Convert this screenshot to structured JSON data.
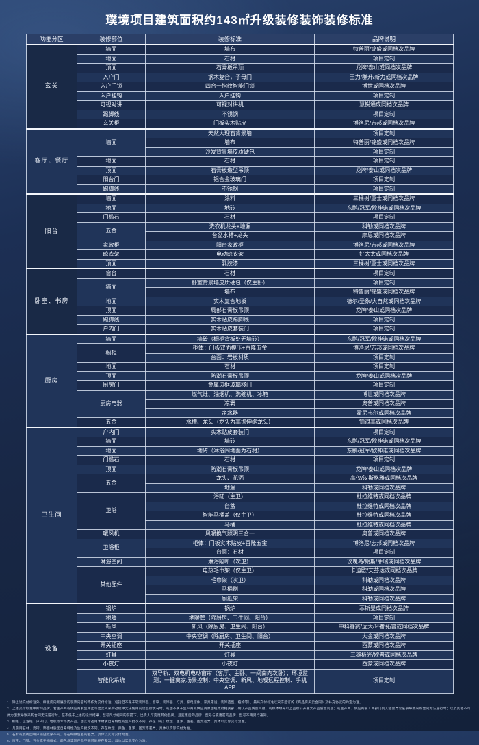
{
  "title": "璞境项目建筑面积约143㎡升级装修装饰装修标准",
  "table": {
    "headers": [
      "功能分区",
      "装修部位",
      "装修标准",
      "品牌说明"
    ],
    "sections": [
      {
        "zone": "玄关",
        "groups": [
          {
            "part": "墙面",
            "entries": [
              {
                "standard": "墙布",
                "brand": "特普丽/锦盛或同档次品牌"
              }
            ]
          },
          {
            "part": "地面",
            "entries": [
              {
                "standard": "石材",
                "brand": "项目定制"
              }
            ]
          },
          {
            "part": "顶面",
            "entries": [
              {
                "standard": "石膏板吊顶",
                "brand": "龙牌/泰山或同档次品牌"
              }
            ]
          },
          {
            "part": "入户门",
            "entries": [
              {
                "standard": "钢木复合，子母门",
                "brand": "王力/群升/新力或同档次品牌"
              }
            ]
          },
          {
            "part": "入户门锁",
            "entries": [
              {
                "standard": "四合一指纹智能门锁",
                "brand": "博世或同档次品牌"
              }
            ]
          },
          {
            "part": "入户挂钩",
            "entries": [
              {
                "standard": "入户挂钩",
                "brand": "项目定制"
              }
            ]
          },
          {
            "part": "可视对讲",
            "entries": [
              {
                "standard": "可视对讲机",
                "brand": "慧锐通或同档次品牌"
              }
            ]
          },
          {
            "part": "踢脚线",
            "entries": [
              {
                "standard": "不锈钢",
                "brand": "项目定制"
              }
            ]
          },
          {
            "part": "玄关柜",
            "entries": [
              {
                "standard": "门板实木贴皮",
                "brand": "博洛尼/志邦或同档次品牌"
              }
            ]
          }
        ]
      },
      {
        "zone": "客厅、餐厅",
        "groups": [
          {
            "part": "墙面",
            "entries": [
              {
                "standard": "天然大理石背景墙",
                "brand": "项目定制"
              },
              {
                "standard": "墙布",
                "brand": "特普丽/锦盛或同档次品牌"
              },
              {
                "standard": "沙发背景墙皮质硬包",
                "brand": "项目定制"
              }
            ]
          },
          {
            "part": "地面",
            "entries": [
              {
                "standard": "石材",
                "brand": "项目定制"
              }
            ]
          },
          {
            "part": "顶面",
            "entries": [
              {
                "standard": "石膏板造型吊顶",
                "brand": "龙牌/泰山或同档次品牌"
              }
            ]
          },
          {
            "part": "阳台门",
            "entries": [
              {
                "standard": "铝合金玻璃门",
                "brand": "项目定制"
              }
            ]
          },
          {
            "part": "踢脚线",
            "entries": [
              {
                "standard": "不锈钢",
                "brand": "项目定制"
              }
            ]
          }
        ]
      },
      {
        "zone": "阳台",
        "groups": [
          {
            "part": "墙面",
            "entries": [
              {
                "standard": "涂料",
                "brand": "三棵树/亚士或同档次品牌"
              }
            ]
          },
          {
            "part": "地面",
            "entries": [
              {
                "standard": "地砖",
                "brand": "东鹏/冠军/欧神诺或同档次品牌"
              }
            ]
          },
          {
            "part": "门槛石",
            "entries": [
              {
                "standard": "石材",
                "brand": "项目定制"
              }
            ]
          },
          {
            "part": "五金",
            "entries": [
              {
                "standard": "洗衣机龙头+地漏",
                "brand": "科勒或同档次品牌"
              },
              {
                "standard": "台盆水槽+龙头",
                "brand": "摩恩或同档次品牌"
              }
            ]
          },
          {
            "part": "家政柜",
            "entries": [
              {
                "standard": "阳台家政柜",
                "brand": "博洛尼/志邦或同档次品牌"
              }
            ]
          },
          {
            "part": "晾衣架",
            "entries": [
              {
                "standard": "电动晾衣架",
                "brand": "好太太或同档次品牌"
              }
            ]
          },
          {
            "part": "顶面",
            "entries": [
              {
                "standard": "乳胶漆",
                "brand": "三棵树/亚士或同档次品牌"
              }
            ]
          }
        ]
      },
      {
        "zone": "卧室、书房",
        "groups": [
          {
            "part": "窗台",
            "entries": [
              {
                "standard": "石材",
                "brand": "项目定制"
              }
            ]
          },
          {
            "part": "墙面",
            "entries": [
              {
                "standard": "卧室背景墙皮质硬包（仅主卧）",
                "brand": "项目定制"
              },
              {
                "standard": "墙布",
                "brand": "特普丽/锦盛或同档次品牌"
              }
            ]
          },
          {
            "part": "地面",
            "entries": [
              {
                "standard": "实木复合地板",
                "brand": "德尔/圣象/大自然或同档次品牌"
              }
            ]
          },
          {
            "part": "顶面",
            "entries": [
              {
                "standard": "局部石膏板吊顶",
                "brand": "龙牌/泰山或同档次品牌"
              }
            ]
          },
          {
            "part": "踢脚线",
            "entries": [
              {
                "standard": "实木贴皮踢脚线",
                "brand": "项目定制"
              }
            ]
          },
          {
            "part": "户内门",
            "entries": [
              {
                "standard": "实木贴皮套装门",
                "brand": "项目定制"
              }
            ]
          }
        ]
      },
      {
        "zone": "厨房",
        "groups": [
          {
            "part": "墙面",
            "entries": [
              {
                "standard": "墙砖（橱柜背板处无墙砖）",
                "brand": "东鹏/冠军/欧神诺或同档次品牌"
              }
            ]
          },
          {
            "part": "橱柜",
            "entries": [
              {
                "standard": "柜体：门板双面模压+百隆五金",
                "brand": "博洛尼/志邦或同档次品牌"
              },
              {
                "standard": "台面：岩板材质",
                "brand": "项目定制"
              }
            ]
          },
          {
            "part": "地面",
            "entries": [
              {
                "standard": "石材",
                "brand": "项目定制"
              }
            ]
          },
          {
            "part": "顶面",
            "entries": [
              {
                "standard": "防潮石膏板吊顶",
                "brand": "龙牌/泰山或同档次品牌"
              }
            ]
          },
          {
            "part": "厨房门",
            "entries": [
              {
                "standard": "金属边框玻璃移门",
                "brand": "项目定制"
              }
            ]
          },
          {
            "part": "厨房电器",
            "entries": [
              {
                "standard": "燃气灶、油烟机、洗碗机、冰箱",
                "brand": "博世或同档次品牌"
              },
              {
                "standard": "凉霸",
                "brand": "奥普或同档次品牌"
              },
              {
                "standard": "净水器",
                "brand": "霍尼韦尔或同档次品牌"
              }
            ]
          },
          {
            "part": "五金",
            "entries": [
              {
                "standard": "水槽、龙头（龙头为高抛伸缩龙头）",
                "brand": "铂浪高或同档次品牌"
              }
            ]
          }
        ]
      },
      {
        "zone": "卫生间",
        "groups": [
          {
            "part": "户内门",
            "entries": [
              {
                "standard": "实木贴皮套装门",
                "brand": "项目定制"
              }
            ]
          },
          {
            "part": "墙面",
            "entries": [
              {
                "standard": "墙砖",
                "brand": "东鹏/冠军/欧神诺或同档次品牌"
              }
            ]
          },
          {
            "part": "地面",
            "entries": [
              {
                "standard": "地砖（淋浴间地面为石材）",
                "brand": "东鹏/冠军/欧神诺或同档次品牌"
              }
            ]
          },
          {
            "part": "门槛石",
            "entries": [
              {
                "standard": "石材",
                "brand": "项目定制"
              }
            ]
          },
          {
            "part": "顶面",
            "entries": [
              {
                "standard": "防潮石膏板吊顶",
                "brand": "龙牌/泰山或同档次品牌"
              }
            ]
          },
          {
            "part": "五金",
            "entries": [
              {
                "standard": "龙头、花洒",
                "brand": "高仪/汉斯格雅或同档次品牌"
              },
              {
                "standard": "地漏",
                "brand": "科勒或同档次品牌"
              }
            ]
          },
          {
            "part": "卫浴",
            "entries": [
              {
                "standard": "浴缸（主卫）",
                "brand": "杜拉维特或同档次品牌"
              },
              {
                "standard": "台盆",
                "brand": "杜拉维特或同档次品牌"
              },
              {
                "standard": "智能马桶盖（仅主卫）",
                "brand": "杜拉维特或同档次品牌"
              },
              {
                "standard": "马桶",
                "brand": "杜拉维特或同档次品牌"
              }
            ]
          },
          {
            "part": "暖风机",
            "entries": [
              {
                "standard": "风暖换气照明三合一",
                "brand": "奥普或同档次品牌"
              }
            ]
          },
          {
            "part": "卫浴柜",
            "entries": [
              {
                "standard": "柜体：门板实木贴皮+百隆五金",
                "brand": "博洛尼/志邦或同档次品牌"
              },
              {
                "standard": "台面：石材",
                "brand": "项目定制"
              }
            ]
          },
          {
            "part": "淋浴空间",
            "entries": [
              {
                "standard": "淋浴隔断（次卫）",
                "brand": "玫瑰岛/朗斯/菲瑞或同档次品牌"
              }
            ]
          },
          {
            "part": "其他配件",
            "entries": [
              {
                "standard": "电热毛巾架（仅主卫）",
                "brand": "卡迪欧/艾芬达或同档次品牌"
              },
              {
                "standard": "毛巾架（次卫）",
                "brand": "科勒或同档次品牌"
              },
              {
                "standard": "马桶刷",
                "brand": "科勒或同档次品牌"
              },
              {
                "standard": "厕纸架",
                "brand": "科勒或同档次品牌"
              }
            ]
          }
        ]
      },
      {
        "zone": "设备",
        "groups": [
          {
            "part": "锅炉",
            "entries": [
              {
                "standard": "锅炉",
                "brand": "菲斯曼或同档次品牌"
              }
            ]
          },
          {
            "part": "地暖",
            "entries": [
              {
                "standard": "地暖管（除厨房、卫生间、阳台）",
                "brand": "项目定制"
              }
            ]
          },
          {
            "part": "新风",
            "entries": [
              {
                "standard": "新风（除厨房、卫生间、阳台）",
                "brand": "中科睿赛/远大/环都拓普或同档次品牌"
              }
            ]
          },
          {
            "part": "中央空调",
            "entries": [
              {
                "standard": "中央空调（除厨房、卫生间、阳台）",
                "brand": "大金或同档次品牌"
              }
            ]
          },
          {
            "part": "开关插座",
            "entries": [
              {
                "standard": "开关插座",
                "brand": "西蒙或同档次品牌"
              }
            ]
          },
          {
            "part": "灯具",
            "entries": [
              {
                "standard": "灯具",
                "brand": "三雄极光/欧普或同档次品牌"
              }
            ]
          },
          {
            "part": "小夜灯",
            "entries": [
              {
                "standard": "小夜灯",
                "brand": "西蒙或同档次品牌"
              }
            ]
          },
          {
            "part": "智能化系统",
            "entries": [
              {
                "standard": "双导轨、双电机电动窗帘（客厅、主卧、一间南向次卧）；环境监测；一键离家场景控制：中央空调、新风、地暖远程控制、手机APP",
                "brand": "项目定制",
                "tall": true
              }
            ]
          }
        ]
      }
    ]
  },
  "footnotes": [
    "1、除上述交付标准外，样板房内所展示的装饰内容均不作为交付标准（包括但不限于软装饰品、窗帘、装饰画、灯具、家电摆件、家具陈设、装饰造型、植物等），最终交付标准以双方签订的《商品房买卖合同》及补充协议的约定为准。",
    "2、上述交付标准中所列品牌，若生产商或供应商发生中止等出卖人采购过程中无法使用前述品牌状况时，或因不属于生产商或供应商原因经政府相关部门确认产品质量问题、或媒体曝光以上品牌公开重大产品质量问题；或生产商、供应商被工商部门列入经营异常名录导致采购合同无法履行时；以及其他不可抗力因素导致采购合同无法履行时，在不低于上述的设计结果、型号尺寸相同的前提下，出卖人可变更其他品牌，且变更后的品牌、型号与变更前的品牌、型号不再另行通知。",
    "3、橱柜、卫浴柜、户内门、地板等木作类产品，因实际选用木材质自身特性或生产批次不同，存在（或）纹理、色泽、色差、图案差异，具体以实际交付为准。",
    "4、凡使用石材、瓷砖、饰面材质因自身特性及生产批次不同，存在纹理、颜色、色泽、图案等差异，具体以实际交付为准。",
    "5、石材或瓷砖因每户铺贴批序不同，存在细微色差的差异，具体以实际交付为准。",
    "6、窗帘、门锁、五金或手柄样式、颜色与实际产品不同可能存在差异，具体以实际交付为准。"
  ],
  "colors": {
    "background_top": "#2a4470",
    "background_bottom": "#13213a",
    "cell_background": "#1a2a4b",
    "cell_background_alt": "#203459",
    "header_background": "#2b3f67",
    "border": "#e9eef6",
    "text": "#eef2f9"
  }
}
